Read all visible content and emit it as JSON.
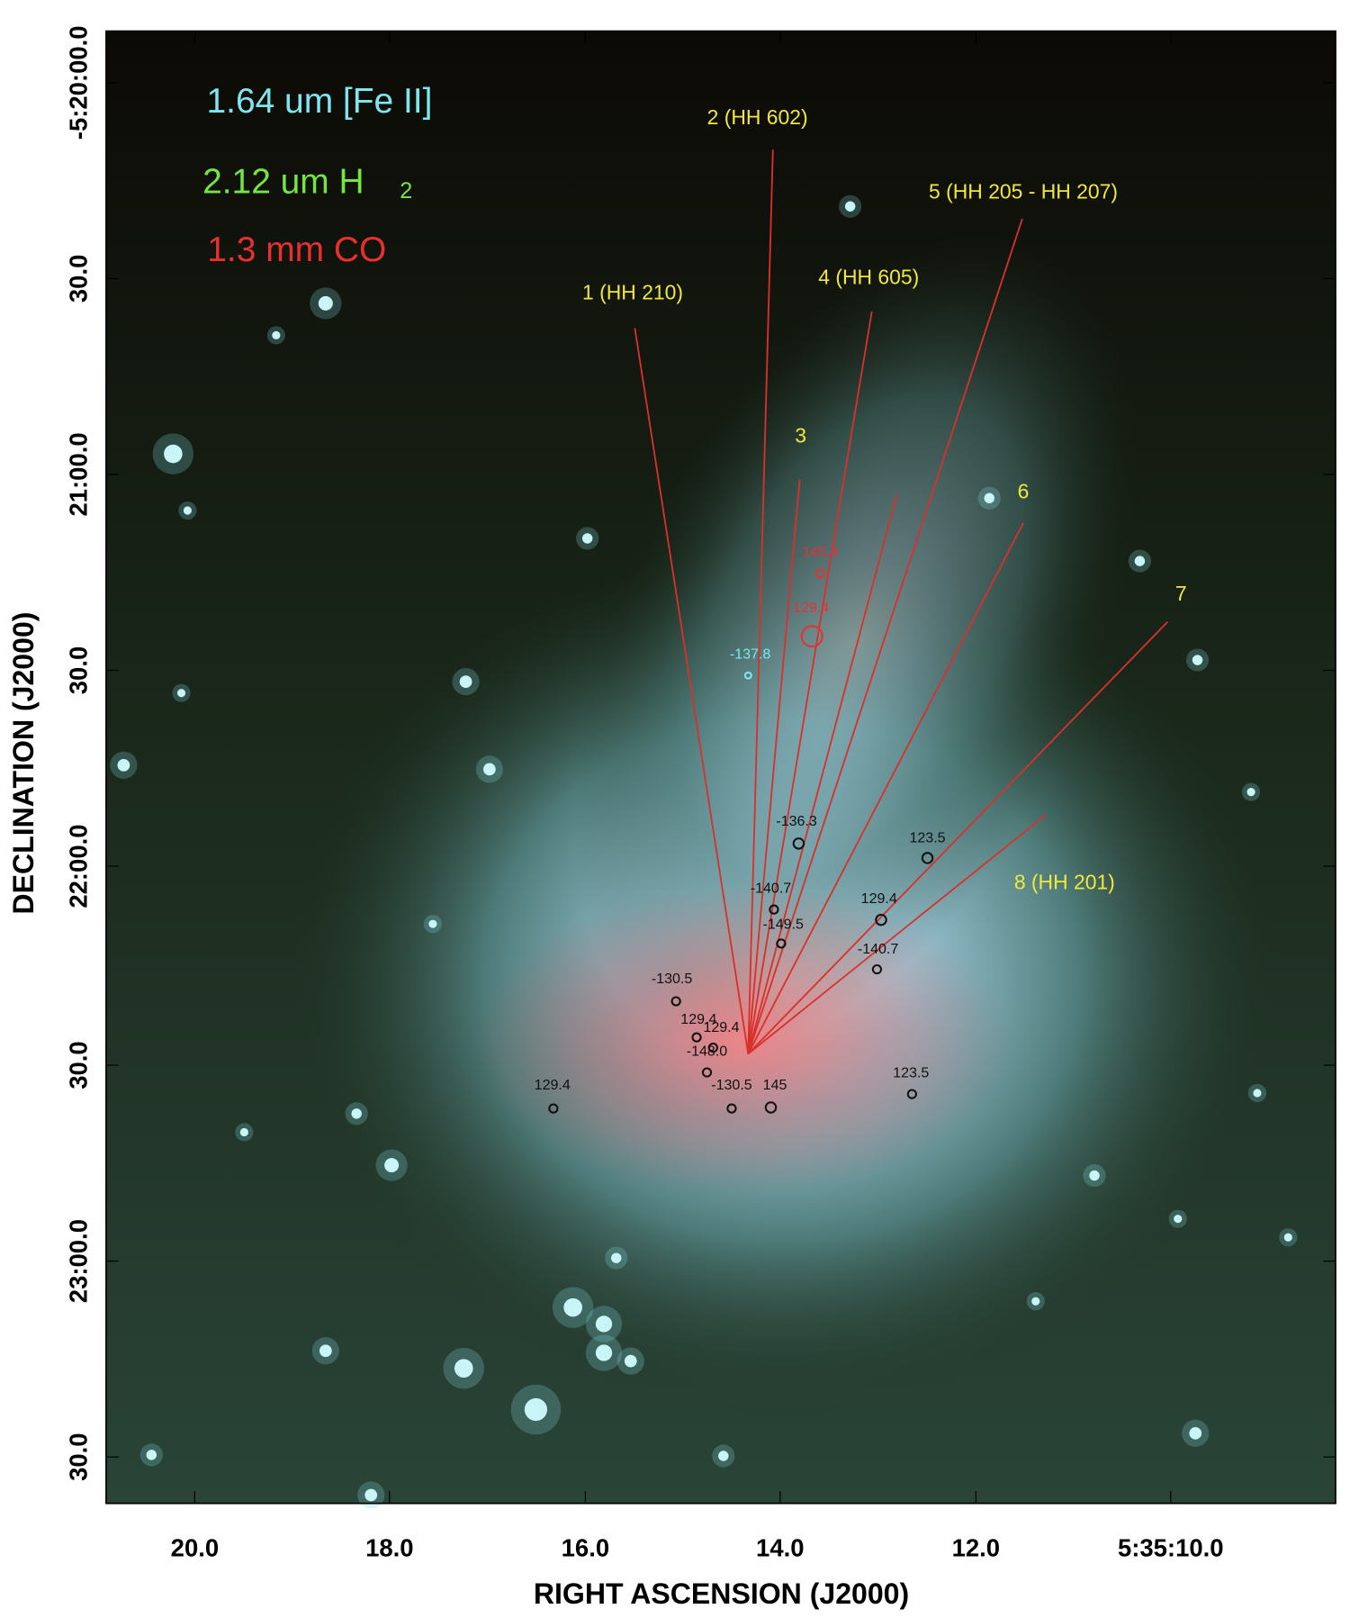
{
  "figure": {
    "legend": {
      "fe": "1.64 um [Fe II]",
      "h2": "2.12 um H",
      "h2_sub": "2",
      "co": "1.3 mm CO"
    },
    "x_axis": {
      "label": "RIGHT ASCENSION (J2000)",
      "ticks": [
        "20.0",
        "18.0",
        "16.0",
        "14.0",
        "12.0",
        "5:35:10.0"
      ]
    },
    "y_axis": {
      "label": "DECLINATION (J2000)",
      "ticks": [
        "-5:20:00.0",
        "30.0",
        "21:00.0",
        "30.0",
        "22:00.0",
        "30.0",
        "23:00.0",
        "30.0"
      ]
    },
    "flows": [
      "1 (HH 210)",
      "2 (HH 602)",
      "3",
      "4 (HH 605)",
      "5 (HH 205 - HH 207)",
      "6",
      "7",
      "8 (HH 201)"
    ],
    "velocities": [
      "145.4",
      "129.4",
      "-137.8",
      "-136.3",
      "123.5",
      "-140.7",
      "129.4",
      "-149.5",
      "-140.7",
      "-130.5",
      "129.4",
      "129.4",
      "-148.0",
      "-130.5",
      "145",
      "129.4",
      "123.5"
    ]
  }
}
